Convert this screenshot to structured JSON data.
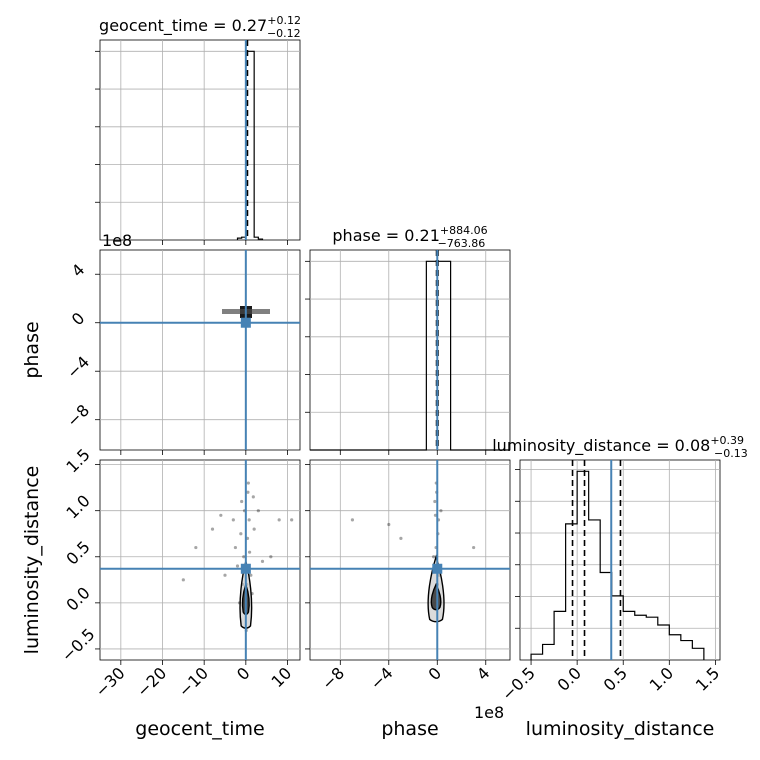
{
  "chart_data": {
    "type": "corner",
    "parameters": [
      "geocent_time",
      "phase",
      "luminosity_distance"
    ],
    "truth_color": "#4682b4",
    "truths": {
      "geocent_time": 0.0,
      "phase": 0.0,
      "luminosity_distance": 0.37
    },
    "titles": [
      {
        "param": "geocent_time",
        "text": "geocent_time = 0.27",
        "plus": "+0.12",
        "minus": "−0.12"
      },
      {
        "param": "phase",
        "text": "phase = 0.21",
        "plus": "+884.06",
        "minus": "−763.86"
      },
      {
        "param": "luminosity_distance",
        "text": "luminosity_distance = 0.08",
        "plus": "+0.39",
        "minus": "−0.13"
      }
    ],
    "offsets": {
      "phase_y": "1e8",
      "phase_x": "1e8"
    },
    "axes": {
      "geocent_time": {
        "range": [
          -35,
          13
        ],
        "ticks": [
          -30,
          -20,
          -10,
          0,
          10
        ],
        "tick_labels": [
          "−30",
          "−20",
          "−10",
          "0",
          "10"
        ]
      },
      "phase": {
        "range": [
          -10.5,
          6
        ],
        "ticks": [
          -8,
          -4,
          0,
          4
        ],
        "tick_labels": [
          "−8",
          "−4",
          "0",
          "4"
        ]
      },
      "luminosity_distance": {
        "range": [
          -0.62,
          1.55
        ],
        "ticks": [
          -0.5,
          0.0,
          0.5,
          1.0,
          1.5
        ],
        "tick_labels": [
          "−0.5",
          "0.0",
          "0.5",
          "1.0",
          "1.5"
        ]
      }
    },
    "axis_labels": {
      "geocent_time": "geocent_time",
      "phase": "phase",
      "luminosity_distance": "luminosity_distance"
    },
    "hist_geocent_time": {
      "edges": [
        -2,
        -1,
        0,
        1,
        2,
        3,
        4
      ],
      "counts": [
        2,
        3,
        200,
        200,
        3,
        1
      ],
      "quantiles": [
        0.15,
        0.27,
        0.39
      ]
    },
    "hist_phase": {
      "edges": [
        -10.5,
        -0.9,
        0.1,
        1.1,
        6
      ],
      "counts": [
        0,
        200,
        200,
        0
      ],
      "quantiles": [
        -0.06,
        0.0,
        0.06
      ]
    },
    "hist_luminosity_distance": {
      "edges": [
        -0.5,
        -0.375,
        -0.25,
        -0.125,
        0.0,
        0.125,
        0.25,
        0.375,
        0.5,
        0.625,
        0.75,
        0.875,
        1.0,
        1.125,
        1.25,
        1.375
      ],
      "counts": [
        3,
        8,
        25,
        70,
        97,
        72,
        45,
        33,
        25,
        23,
        22,
        18,
        13,
        10,
        6
      ],
      "quantiles": [
        -0.05,
        0.08,
        0.47
      ]
    },
    "scatter_geocent_luminosity": [
      [
        0.2,
        0.2
      ],
      [
        -0.5,
        0.5
      ],
      [
        0.8,
        0.9
      ],
      [
        -1.0,
        1.1
      ],
      [
        1.2,
        0.3
      ],
      [
        -1.5,
        0.0
      ],
      [
        2.0,
        0.8
      ],
      [
        -2.5,
        0.6
      ],
      [
        0.5,
        1.2
      ],
      [
        0.1,
        -0.3
      ],
      [
        -0.3,
        1.0
      ],
      [
        0.4,
        0.7
      ],
      [
        -8,
        0.8
      ],
      [
        -12,
        0.6
      ],
      [
        4,
        0.45
      ],
      [
        8,
        0.9
      ],
      [
        -15,
        0.25
      ],
      [
        11,
        0.9
      ],
      [
        -5,
        0.3
      ],
      [
        3,
        1.0
      ],
      [
        -3,
        0.9
      ],
      [
        1.5,
        0.1
      ],
      [
        -0.8,
        0.2
      ],
      [
        0.9,
        0.55
      ],
      [
        -1.2,
        0.75
      ],
      [
        1.8,
        1.15
      ],
      [
        -2,
        0.4
      ],
      [
        -6,
        0.95
      ],
      [
        6,
        0.5
      ],
      [
        0.6,
        1.3
      ]
    ],
    "scatter_phase_luminosity": [
      [
        0.0,
        0.2
      ],
      [
        -0.1,
        0.6
      ],
      [
        0.1,
        0.9
      ],
      [
        -0.2,
        1.1
      ],
      [
        0.2,
        0.4
      ],
      [
        -0.05,
        1.2
      ],
      [
        0.05,
        0.75
      ],
      [
        -0.15,
        0.95
      ],
      [
        -4,
        0.85
      ],
      [
        -7,
        0.9
      ],
      [
        3,
        0.6
      ],
      [
        -3,
        0.7
      ],
      [
        0.3,
        1.0
      ],
      [
        -0.3,
        0.5
      ],
      [
        0.15,
        0.3
      ],
      [
        -0.08,
        1.3
      ]
    ],
    "contours_geocent_luminosity": [
      {
        "level": "outer",
        "center": [
          0,
          0.1
        ],
        "halfwidth": 1.6,
        "low": -0.25,
        "high": 0.45
      },
      {
        "level": "inner",
        "center": [
          0,
          0.05
        ],
        "halfwidth": 0.9,
        "low": -0.1,
        "high": 0.2
      }
    ],
    "contours_phase_luminosity": [
      {
        "level": "outer",
        "center": [
          -0.1,
          0.1
        ],
        "halfwidth": 0.75,
        "low": -0.18,
        "high": 0.5
      },
      {
        "level": "inner",
        "center": [
          -0.1,
          0.05
        ],
        "halfwidth": 0.45,
        "low": -0.05,
        "high": 0.2
      }
    ]
  }
}
